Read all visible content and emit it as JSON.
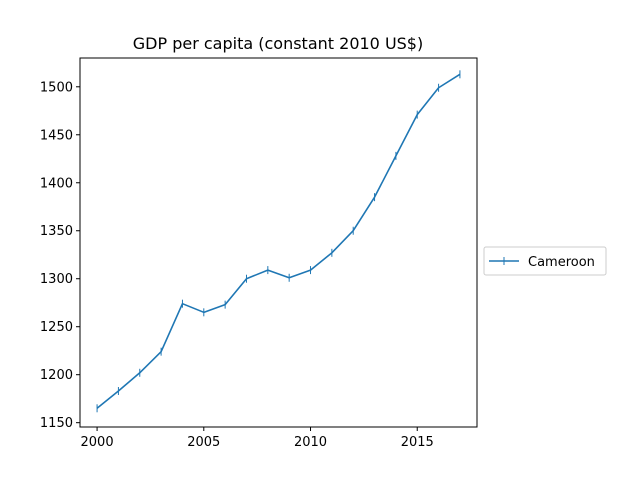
{
  "chart_data": {
    "type": "line",
    "title": "GDP per capita (constant 2010 US$)",
    "xlabel": "",
    "ylabel": "",
    "xlim": [
      1999.2,
      2017.8
    ],
    "ylim": [
      1145.5,
      1530
    ],
    "xticks": [
      2000,
      2005,
      2010,
      2015
    ],
    "yticks": [
      1150,
      1200,
      1250,
      1300,
      1350,
      1400,
      1450,
      1500
    ],
    "grid": false,
    "legend_position": "right",
    "color": "#1f77b4",
    "series": [
      {
        "name": "Cameroon",
        "x": [
          2000,
          2001,
          2002,
          2003,
          2004,
          2005,
          2006,
          2007,
          2008,
          2009,
          2010,
          2011,
          2012,
          2013,
          2014,
          2015,
          2016,
          2017
        ],
        "values": [
          1165,
          1183,
          1202,
          1224,
          1274,
          1265,
          1273,
          1300,
          1309,
          1301,
          1309,
          1327,
          1350,
          1385,
          1428,
          1471,
          1499,
          1513
        ]
      }
    ]
  }
}
